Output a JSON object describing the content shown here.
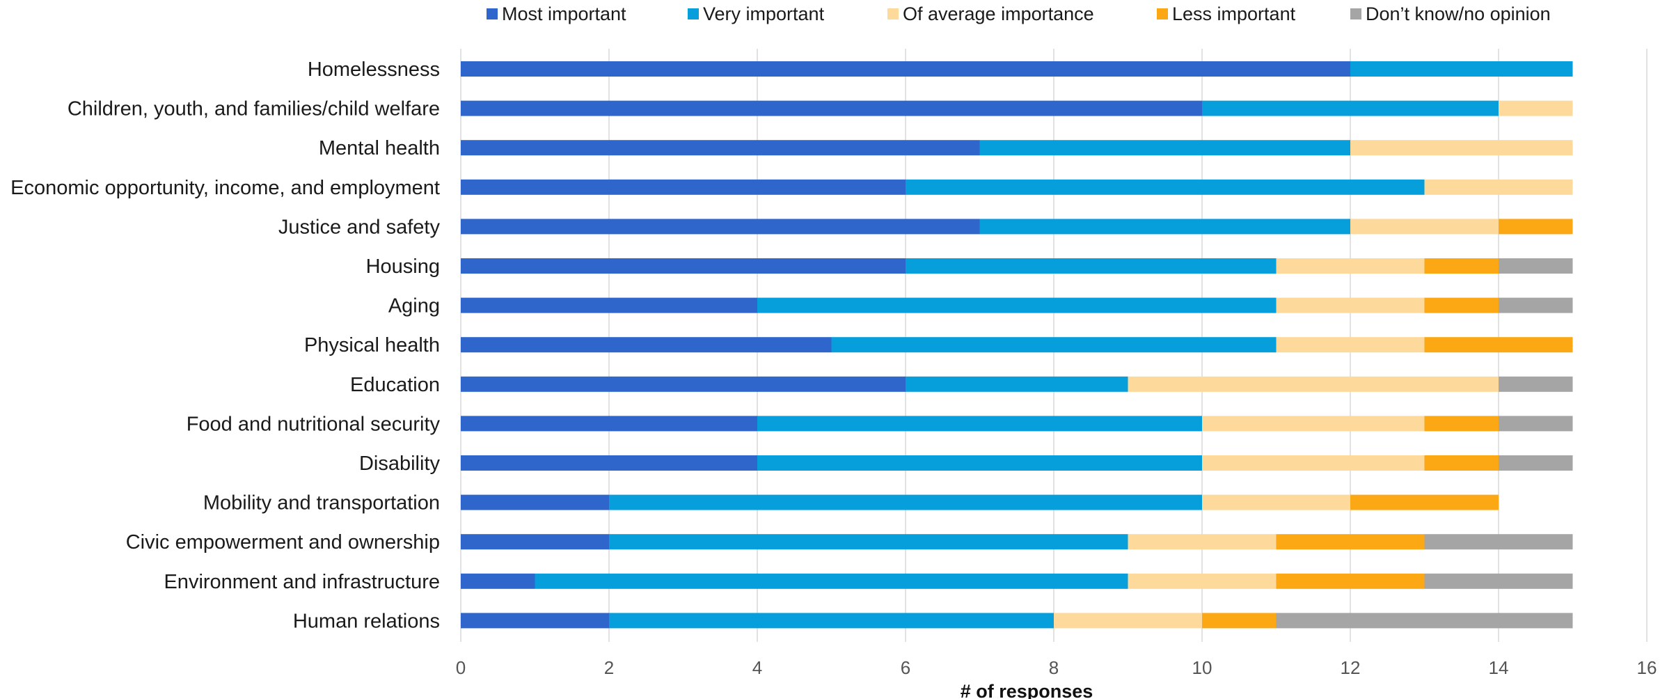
{
  "chart_data": {
    "type": "bar",
    "orientation": "horizontal",
    "stacked": true,
    "title": "",
    "xlabel": "# of responses",
    "ylabel": "",
    "xlim": [
      0,
      16
    ],
    "xticks": [
      0,
      2,
      4,
      6,
      8,
      10,
      12,
      14,
      16
    ],
    "grid": true,
    "legend_position": "top",
    "categories": [
      "Homelessness",
      "Children, youth, and families/child welfare",
      "Mental health",
      "Economic opportunity, income, and employment",
      "Justice and safety",
      "Housing",
      "Aging",
      "Physical health",
      "Education",
      "Food and nutritional security",
      "Disability",
      "Mobility and transportation",
      "Civic empowerment and ownership",
      "Environment and infrastructure",
      "Human relations"
    ],
    "series": [
      {
        "name": "Most important",
        "color": "#2e66cc",
        "values": [
          12,
          10,
          7,
          6,
          7,
          6,
          4,
          5,
          6,
          4,
          4,
          2,
          2,
          1,
          2
        ]
      },
      {
        "name": "Very important",
        "color": "#069fdb",
        "values": [
          3,
          4,
          5,
          7,
          5,
          5,
          7,
          6,
          3,
          6,
          6,
          8,
          7,
          8,
          6
        ]
      },
      {
        "name": "Of average importance",
        "color": "#fdd99b",
        "values": [
          0,
          1,
          3,
          2,
          2,
          2,
          2,
          2,
          5,
          3,
          3,
          2,
          2,
          2,
          2
        ]
      },
      {
        "name": "Less important",
        "color": "#fca814",
        "values": [
          0,
          0,
          0,
          0,
          1,
          1,
          1,
          2,
          0,
          1,
          1,
          2,
          2,
          2,
          1
        ]
      },
      {
        "name": "Don’t know/no opinion",
        "color": "#a5a5a5",
        "values": [
          0,
          0,
          0,
          0,
          0,
          1,
          1,
          0,
          1,
          1,
          1,
          0,
          2,
          2,
          4
        ]
      }
    ]
  }
}
